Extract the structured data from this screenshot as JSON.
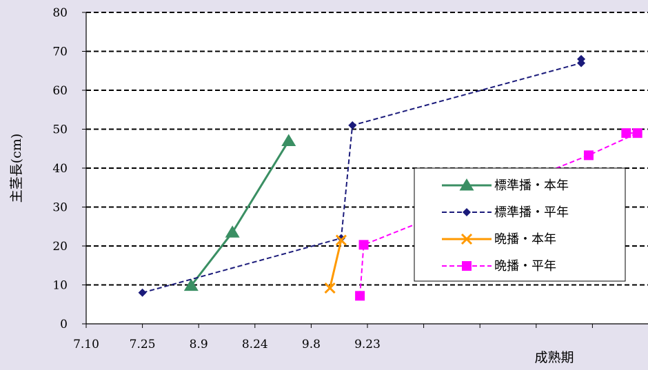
{
  "chart_data": {
    "type": "line",
    "xlabel": "成熟期",
    "ylabel": "主茎長(cm)",
    "x_ticks": [
      "7.10",
      "7.25",
      "8.9",
      "8.24",
      "9.8",
      "9.23"
    ],
    "ylim": [
      0,
      80
    ],
    "y_ticks": [
      0,
      10,
      20,
      30,
      40,
      50,
      60,
      70,
      80
    ],
    "grid": true,
    "legend_position": "right",
    "series": [
      {
        "name": "標準播・本年",
        "color": "#3a8f63",
        "marker": "triangle",
        "dash": "solid",
        "x": [
          7.38,
          8.18,
          9.02
        ],
        "y": [
          9.8,
          23.5,
          47
        ]
      },
      {
        "name": "標準播・平年",
        "color": "#1a1a7a",
        "marker": "diamond",
        "dash": "dashed",
        "x": [
          7.25,
          7.78,
          8.5,
          9.8,
          10.49
        ],
        "y": [
          8,
          22,
          51,
          67,
          68
        ]
      },
      {
        "name": "晩播・本年",
        "color": "#ff9900",
        "marker": "x",
        "dash": "solid",
        "x": [
          7.75,
          8.47
        ],
        "y": [
          9.2,
          21.5
        ]
      },
      {
        "name": "晩播・平年",
        "color": "#ff00ff",
        "marker": "square",
        "dash": "dashed",
        "x": [
          7.83,
          8.53,
          9.82,
          9.95,
          10.61
        ],
        "y": [
          7.2,
          20.3,
          43.3,
          49,
          49
        ]
      }
    ]
  }
}
